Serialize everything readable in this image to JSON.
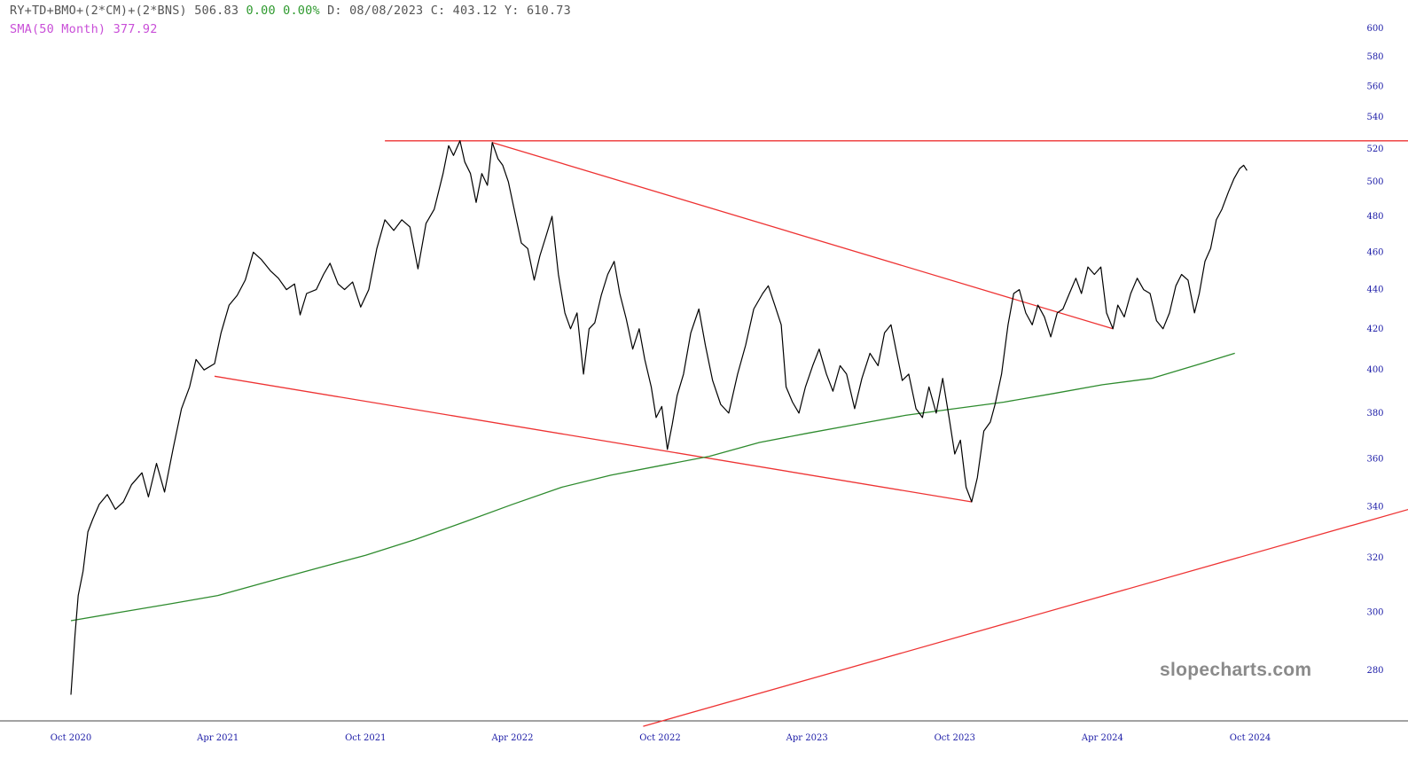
{
  "header": {
    "symbol": "RY+TD+BMO+(2*CM)+(2*BNS)",
    "last": "506.83",
    "change": "0.00",
    "change_pct": "0.00%",
    "date_label": "D: 08/08/2023",
    "c_label": "C: 403.12",
    "y_label": "Y: 610.73",
    "sma_label": "SMA(50 Month) 377.92"
  },
  "watermark": "slopecharts.com",
  "colors": {
    "price": "#000000",
    "sma": "#2e8b2e",
    "trendline": "#ee3333",
    "axis_text": "#1a1aa6",
    "sma_text": "#c94fd8",
    "change_text": "#2f9a2f"
  },
  "chart_data": {
    "type": "line",
    "title": "",
    "xlabel": "",
    "ylabel": "",
    "ylim": [
      264,
      610
    ],
    "y_scale": "log",
    "y_ticks": [
      280,
      300,
      320,
      340,
      360,
      380,
      400,
      420,
      440,
      460,
      480,
      500,
      520,
      540,
      560,
      580,
      600
    ],
    "x_ticks": [
      {
        "label": "Oct 2020",
        "date": "2020-10-01"
      },
      {
        "label": "Apr 2021",
        "date": "2021-04-01"
      },
      {
        "label": "Oct 2021",
        "date": "2021-10-01"
      },
      {
        "label": "Apr 2022",
        "date": "2022-04-01"
      },
      {
        "label": "Oct 2022",
        "date": "2022-10-01"
      },
      {
        "label": "Apr 2023",
        "date": "2023-04-01"
      },
      {
        "label": "Oct 2023",
        "date": "2023-10-01"
      },
      {
        "label": "Apr 2024",
        "date": "2024-04-01"
      },
      {
        "label": "Oct 2024",
        "date": "2024-10-01"
      }
    ],
    "series": [
      {
        "name": "RY+TD+BMO+(2*CM)+(2*BNS)",
        "points": [
          [
            "2020-10-01",
            272
          ],
          [
            "2020-10-06",
            292
          ],
          [
            "2020-10-10",
            306
          ],
          [
            "2020-10-16",
            315
          ],
          [
            "2020-10-22",
            330
          ],
          [
            "2020-10-28",
            335
          ],
          [
            "2020-11-05",
            341
          ],
          [
            "2020-11-15",
            345
          ],
          [
            "2020-11-25",
            339
          ],
          [
            "2020-12-05",
            342
          ],
          [
            "2020-12-15",
            349
          ],
          [
            "2020-12-28",
            354
          ],
          [
            "2021-01-05",
            344
          ],
          [
            "2021-01-15",
            358
          ],
          [
            "2021-01-25",
            346
          ],
          [
            "2021-02-05",
            365
          ],
          [
            "2021-02-15",
            382
          ],
          [
            "2021-02-25",
            392
          ],
          [
            "2021-03-05",
            405
          ],
          [
            "2021-03-15",
            400
          ],
          [
            "2021-03-28",
            403
          ],
          [
            "2021-04-05",
            418
          ],
          [
            "2021-04-15",
            432
          ],
          [
            "2021-04-25",
            437
          ],
          [
            "2021-05-05",
            445
          ],
          [
            "2021-05-15",
            460
          ],
          [
            "2021-05-25",
            456
          ],
          [
            "2021-06-05",
            450
          ],
          [
            "2021-06-15",
            446
          ],
          [
            "2021-06-25",
            440
          ],
          [
            "2021-07-05",
            443
          ],
          [
            "2021-07-12",
            427
          ],
          [
            "2021-07-20",
            438
          ],
          [
            "2021-08-01",
            440
          ],
          [
            "2021-08-10",
            448
          ],
          [
            "2021-08-18",
            454
          ],
          [
            "2021-08-28",
            443
          ],
          [
            "2021-09-05",
            440
          ],
          [
            "2021-09-15",
            444
          ],
          [
            "2021-09-25",
            431
          ],
          [
            "2021-10-05",
            440
          ],
          [
            "2021-10-15",
            462
          ],
          [
            "2021-10-25",
            478
          ],
          [
            "2021-11-05",
            472
          ],
          [
            "2021-11-15",
            478
          ],
          [
            "2021-11-25",
            474
          ],
          [
            "2021-12-05",
            451
          ],
          [
            "2021-12-15",
            476
          ],
          [
            "2021-12-25",
            484
          ],
          [
            "2022-01-05",
            505
          ],
          [
            "2022-01-12",
            522
          ],
          [
            "2022-01-18",
            516
          ],
          [
            "2022-01-26",
            525
          ],
          [
            "2022-02-01",
            512
          ],
          [
            "2022-02-08",
            505
          ],
          [
            "2022-02-15",
            488
          ],
          [
            "2022-02-22",
            505
          ],
          [
            "2022-03-01",
            498
          ],
          [
            "2022-03-07",
            524
          ],
          [
            "2022-03-14",
            514
          ],
          [
            "2022-03-20",
            510
          ],
          [
            "2022-03-27",
            500
          ],
          [
            "2022-04-05",
            480
          ],
          [
            "2022-04-12",
            465
          ],
          [
            "2022-04-20",
            462
          ],
          [
            "2022-04-28",
            445
          ],
          [
            "2022-05-05",
            458
          ],
          [
            "2022-05-12",
            468
          ],
          [
            "2022-05-20",
            480
          ],
          [
            "2022-05-28",
            448
          ],
          [
            "2022-06-05",
            428
          ],
          [
            "2022-06-12",
            420
          ],
          [
            "2022-06-20",
            428
          ],
          [
            "2022-06-28",
            398
          ],
          [
            "2022-07-05",
            420
          ],
          [
            "2022-07-12",
            423
          ],
          [
            "2022-07-20",
            437
          ],
          [
            "2022-07-28",
            448
          ],
          [
            "2022-08-05",
            455
          ],
          [
            "2022-08-12",
            438
          ],
          [
            "2022-08-20",
            425
          ],
          [
            "2022-08-28",
            410
          ],
          [
            "2022-09-05",
            420
          ],
          [
            "2022-09-12",
            405
          ],
          [
            "2022-09-20",
            392
          ],
          [
            "2022-09-26",
            378
          ],
          [
            "2022-10-03",
            383
          ],
          [
            "2022-10-10",
            364
          ],
          [
            "2022-10-16",
            375
          ],
          [
            "2022-10-22",
            388
          ],
          [
            "2022-10-30",
            398
          ],
          [
            "2022-11-08",
            418
          ],
          [
            "2022-11-18",
            430
          ],
          [
            "2022-11-26",
            412
          ],
          [
            "2022-12-05",
            395
          ],
          [
            "2022-12-15",
            384
          ],
          [
            "2022-12-25",
            380
          ],
          [
            "2023-01-05",
            398
          ],
          [
            "2023-01-15",
            412
          ],
          [
            "2023-01-25",
            430
          ],
          [
            "2023-02-05",
            438
          ],
          [
            "2023-02-12",
            442
          ],
          [
            "2023-02-20",
            432
          ],
          [
            "2023-02-28",
            422
          ],
          [
            "2023-03-06",
            392
          ],
          [
            "2023-03-14",
            385
          ],
          [
            "2023-03-22",
            380
          ],
          [
            "2023-03-30",
            392
          ],
          [
            "2023-04-08",
            402
          ],
          [
            "2023-04-16",
            410
          ],
          [
            "2023-04-25",
            398
          ],
          [
            "2023-05-03",
            390
          ],
          [
            "2023-05-12",
            402
          ],
          [
            "2023-05-20",
            398
          ],
          [
            "2023-05-30",
            382
          ],
          [
            "2023-06-08",
            396
          ],
          [
            "2023-06-18",
            408
          ],
          [
            "2023-06-28",
            402
          ],
          [
            "2023-07-06",
            418
          ],
          [
            "2023-07-14",
            422
          ],
          [
            "2023-07-20",
            410
          ],
          [
            "2023-07-28",
            395
          ],
          [
            "2023-08-05",
            398
          ],
          [
            "2023-08-14",
            382
          ],
          [
            "2023-08-22",
            378
          ],
          [
            "2023-08-30",
            392
          ],
          [
            "2023-09-08",
            380
          ],
          [
            "2023-09-16",
            396
          ],
          [
            "2023-09-24",
            378
          ],
          [
            "2023-10-01",
            362
          ],
          [
            "2023-10-08",
            368
          ],
          [
            "2023-10-15",
            348
          ],
          [
            "2023-10-22",
            342
          ],
          [
            "2023-10-29",
            352
          ],
          [
            "2023-11-06",
            372
          ],
          [
            "2023-11-14",
            376
          ],
          [
            "2023-11-20",
            384
          ],
          [
            "2023-11-28",
            398
          ],
          [
            "2023-12-06",
            422
          ],
          [
            "2023-12-13",
            438
          ],
          [
            "2023-12-20",
            440
          ],
          [
            "2023-12-28",
            428
          ],
          [
            "2024-01-05",
            422
          ],
          [
            "2024-01-12",
            432
          ],
          [
            "2024-01-20",
            426
          ],
          [
            "2024-01-28",
            416
          ],
          [
            "2024-02-05",
            428
          ],
          [
            "2024-02-12",
            430
          ],
          [
            "2024-02-20",
            438
          ],
          [
            "2024-02-28",
            446
          ],
          [
            "2024-03-06",
            438
          ],
          [
            "2024-03-14",
            452
          ],
          [
            "2024-03-22",
            448
          ],
          [
            "2024-03-30",
            452
          ],
          [
            "2024-04-06",
            428
          ],
          [
            "2024-04-14",
            420
          ],
          [
            "2024-04-20",
            432
          ],
          [
            "2024-04-28",
            426
          ],
          [
            "2024-05-06",
            438
          ],
          [
            "2024-05-14",
            446
          ],
          [
            "2024-05-22",
            440
          ],
          [
            "2024-05-30",
            438
          ],
          [
            "2024-06-07",
            424
          ],
          [
            "2024-06-15",
            420
          ],
          [
            "2024-06-23",
            428
          ],
          [
            "2024-07-01",
            442
          ],
          [
            "2024-07-08",
            448
          ],
          [
            "2024-07-16",
            445
          ],
          [
            "2024-07-24",
            428
          ],
          [
            "2024-07-30",
            438
          ],
          [
            "2024-08-06",
            455
          ],
          [
            "2024-08-13",
            462
          ],
          [
            "2024-08-20",
            478
          ],
          [
            "2024-08-27",
            484
          ],
          [
            "2024-09-04",
            494
          ],
          [
            "2024-09-11",
            502
          ],
          [
            "2024-09-18",
            508
          ],
          [
            "2024-09-23",
            510
          ],
          [
            "2024-09-27",
            506.83
          ]
        ]
      },
      {
        "name": "SMA(50 Month)",
        "points": [
          [
            "2020-10-01",
            297
          ],
          [
            "2020-12-01",
            300
          ],
          [
            "2021-02-01",
            303
          ],
          [
            "2021-04-01",
            306
          ],
          [
            "2021-06-01",
            311
          ],
          [
            "2021-08-01",
            316
          ],
          [
            "2021-10-01",
            321
          ],
          [
            "2021-12-01",
            327
          ],
          [
            "2022-02-01",
            334
          ],
          [
            "2022-04-01",
            341
          ],
          [
            "2022-06-01",
            348
          ],
          [
            "2022-08-01",
            353
          ],
          [
            "2022-10-01",
            357
          ],
          [
            "2022-12-01",
            361
          ],
          [
            "2023-02-01",
            367
          ],
          [
            "2023-04-01",
            371
          ],
          [
            "2023-06-01",
            375
          ],
          [
            "2023-08-01",
            379
          ],
          [
            "2023-10-01",
            382
          ],
          [
            "2023-12-01",
            385
          ],
          [
            "2024-02-01",
            389
          ],
          [
            "2024-04-01",
            393
          ],
          [
            "2024-06-01",
            396
          ],
          [
            "2024-08-01",
            403
          ],
          [
            "2024-09-12",
            408
          ]
        ]
      }
    ],
    "trendlines": [
      {
        "points": [
          [
            "2021-10-25",
            525
          ],
          [
            "2025-06-30",
            525
          ]
        ]
      },
      {
        "points": [
          [
            "2022-03-07",
            524
          ],
          [
            "2024-04-14",
            420
          ]
        ]
      },
      {
        "points": [
          [
            "2021-03-28",
            397
          ],
          [
            "2023-10-22",
            342
          ]
        ]
      },
      {
        "points": [
          [
            "2022-09-10",
            262
          ],
          [
            "2025-06-30",
            346
          ]
        ]
      }
    ]
  }
}
